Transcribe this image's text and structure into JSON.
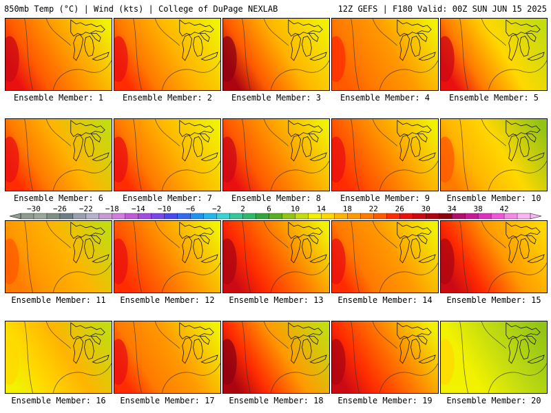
{
  "header": {
    "left": "850mb Temp (°C) | Wind (kts) | College of DuPage NEXLAB",
    "right": "12Z GEFS | F180 Valid: 00Z SUN JUN 15 2025"
  },
  "members": [
    {
      "label": "Ensemble Member: 1",
      "west_temp": 26,
      "center_temp": 18,
      "ne_temp": 12
    },
    {
      "label": "Ensemble Member: 2",
      "west_temp": 24,
      "center_temp": 17,
      "ne_temp": 12
    },
    {
      "label": "Ensemble Member: 3",
      "west_temp": 30,
      "center_temp": 17,
      "ne_temp": 12
    },
    {
      "label": "Ensemble Member: 4",
      "west_temp": 22,
      "center_temp": 18,
      "ne_temp": 13
    },
    {
      "label": "Ensemble Member: 5",
      "west_temp": 26,
      "center_temp": 15,
      "ne_temp": 10
    },
    {
      "label": "Ensemble Member: 6",
      "west_temp": 25,
      "center_temp": 17,
      "ne_temp": 11
    },
    {
      "label": "Ensemble Member: 7",
      "west_temp": 25,
      "center_temp": 17,
      "ne_temp": 12
    },
    {
      "label": "Ensemble Member: 8",
      "west_temp": 26,
      "center_temp": 19,
      "ne_temp": 12
    },
    {
      "label": "Ensemble Member: 9",
      "west_temp": 25,
      "center_temp": 19,
      "ne_temp": 12
    },
    {
      "label": "Ensemble Member: 10",
      "west_temp": 20,
      "center_temp": 15,
      "ne_temp": 9
    },
    {
      "label": "Ensemble Member: 11",
      "west_temp": 21,
      "center_temp": 17,
      "ne_temp": 10
    },
    {
      "label": "Ensemble Member: 12",
      "west_temp": 25,
      "center_temp": 19,
      "ne_temp": 12
    },
    {
      "label": "Ensemble Member: 13",
      "west_temp": 28,
      "center_temp": 20,
      "ne_temp": 13
    },
    {
      "label": "Ensemble Member: 14",
      "west_temp": 24,
      "center_temp": 18,
      "ne_temp": 12
    },
    {
      "label": "Ensemble Member: 15",
      "west_temp": 29,
      "center_temp": 19,
      "ne_temp": 14
    },
    {
      "label": "Ensemble Member: 16",
      "west_temp": 13,
      "center_temp": 16,
      "ne_temp": 11
    },
    {
      "label": "Ensemble Member: 17",
      "west_temp": 24,
      "center_temp": 19,
      "ne_temp": 12
    },
    {
      "label": "Ensemble Member: 18",
      "west_temp": 30,
      "center_temp": 19,
      "ne_temp": 11
    },
    {
      "label": "Ensemble Member: 19",
      "west_temp": 29,
      "center_temp": 21,
      "ne_temp": 12
    },
    {
      "label": "Ensemble Member: 20",
      "west_temp": 13,
      "center_temp": 11,
      "ne_temp": 8
    }
  ],
  "colorbar": {
    "labels": [
      "−30",
      "−26",
      "−22",
      "−18",
      "−14",
      "−10",
      "−6",
      "−2",
      "2",
      "6",
      "10",
      "14",
      "18",
      "22",
      "26",
      "30",
      "34",
      "38",
      "42"
    ],
    "min": -32,
    "step": 2,
    "colors": [
      "#8f9b8f",
      "#9aa79a",
      "#7f8f86",
      "#6f7f86",
      "#9a9fb0",
      "#b6b2cc",
      "#c79bd8",
      "#d27be0",
      "#c25ad8",
      "#a24ce0",
      "#7848ea",
      "#4848ee",
      "#2f6cf0",
      "#1f93f0",
      "#23b7f0",
      "#3ad2d2",
      "#35c79a",
      "#2dbb6a",
      "#34a53b",
      "#5aaf1e",
      "#92c416",
      "#c4dc10",
      "#f1f100",
      "#ffd800",
      "#ffb400",
      "#ff9a00",
      "#ff7a00",
      "#ff5a00",
      "#ff2c00",
      "#ea1010",
      "#cc0a14",
      "#ad0510",
      "#8f0210",
      "#b0106a",
      "#c81a98",
      "#dd32c0",
      "#ee58d8",
      "#f58ae6",
      "#fab6f0"
    ]
  }
}
